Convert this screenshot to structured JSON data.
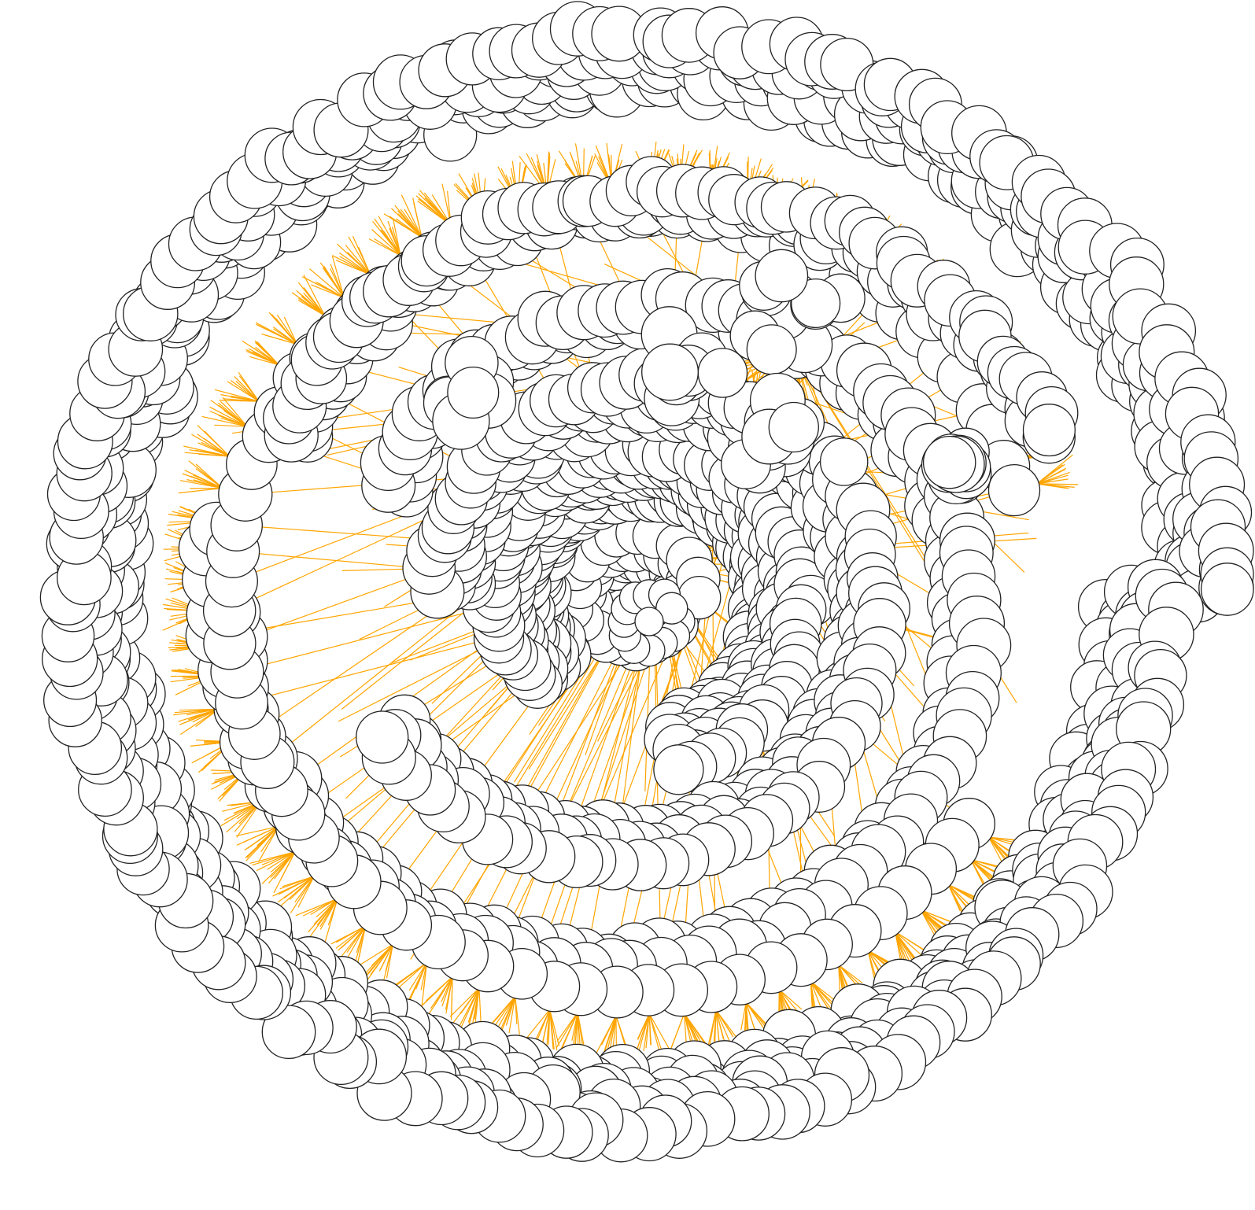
{
  "diagram": {
    "type": "radial-network-graph",
    "labels": [],
    "colors": {
      "background": "#ffffff",
      "node_fill": "#ffffff",
      "node_stroke": "#222222",
      "edge": "#ffa500"
    }
  }
}
